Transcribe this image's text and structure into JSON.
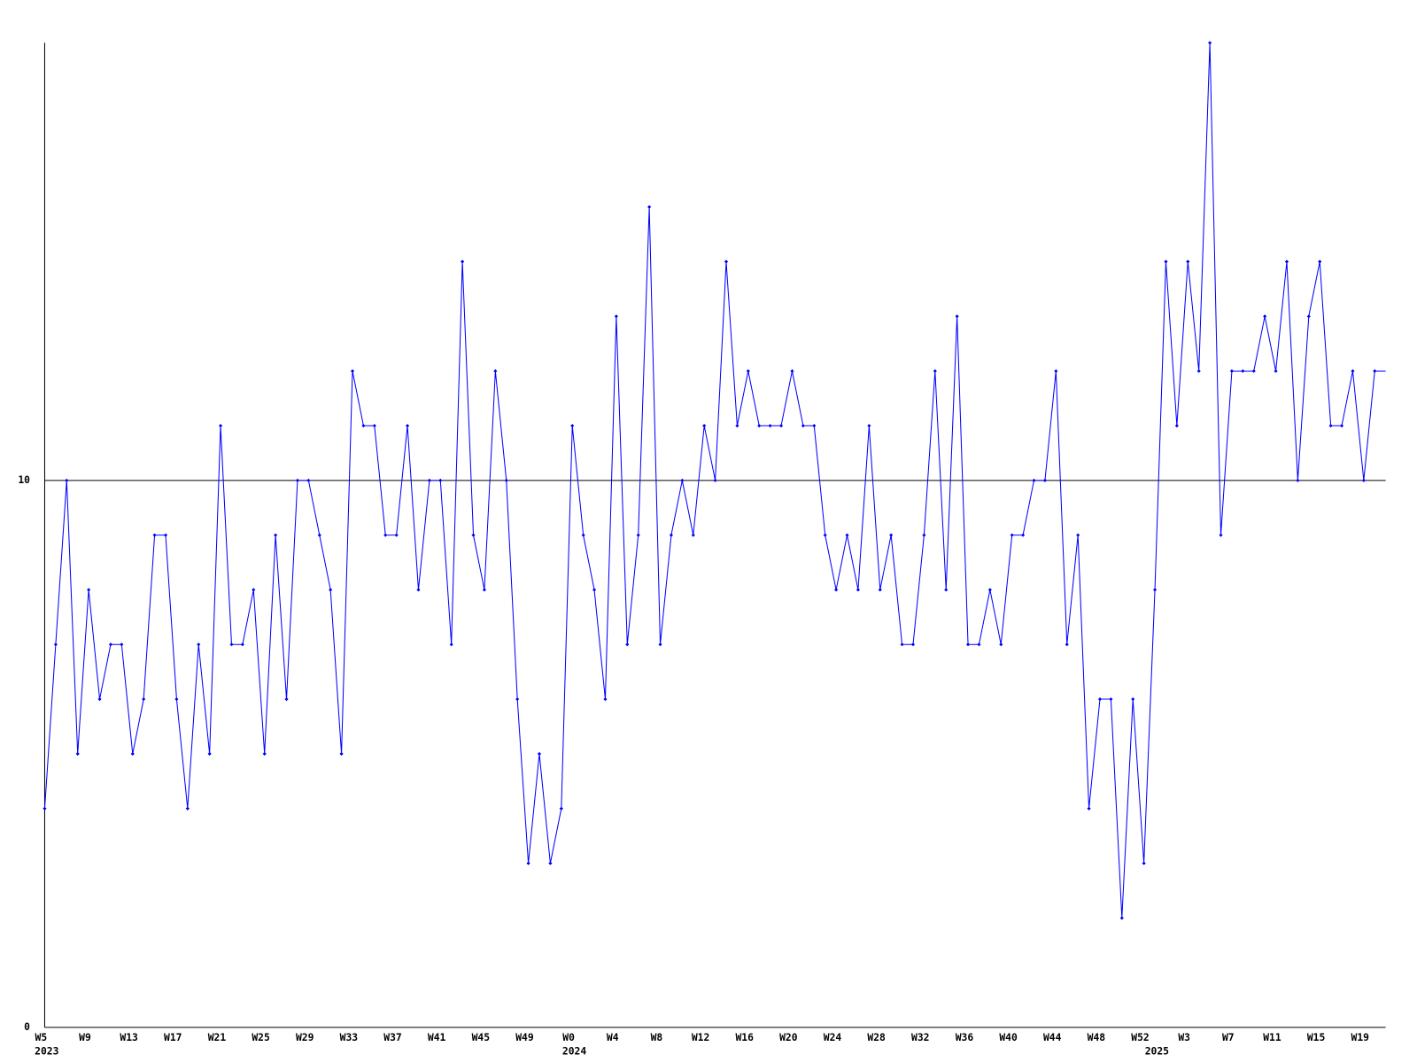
{
  "chart_data": {
    "type": "line",
    "categories": [
      "W5",
      null,
      null,
      null,
      "W9",
      null,
      null,
      null,
      "W13",
      null,
      null,
      null,
      "W17",
      null,
      null,
      null,
      "W21",
      null,
      null,
      null,
      "W25",
      null,
      null,
      null,
      "W29",
      null,
      null,
      null,
      "W33",
      null,
      null,
      null,
      "W37",
      null,
      null,
      null,
      "W41",
      null,
      null,
      null,
      "W45",
      null,
      null,
      null,
      "W49",
      null,
      null,
      null,
      "W0",
      null,
      null,
      null,
      "W4",
      null,
      null,
      null,
      "W8",
      null,
      null,
      null,
      "W12",
      null,
      null,
      null,
      "W16",
      null,
      null,
      null,
      "W20",
      null,
      null,
      null,
      "W24",
      null,
      null,
      null,
      "W28",
      null,
      null,
      null,
      "W32",
      null,
      null,
      null,
      "W36",
      null,
      null,
      null,
      "W40",
      null,
      null,
      null,
      "W44",
      null,
      null,
      null,
      "W48",
      null,
      null,
      null,
      "W52",
      null,
      null,
      null,
      "W3",
      null,
      null,
      null,
      "W7",
      null,
      null,
      null,
      "W11",
      null,
      null,
      null,
      "W15",
      null,
      null,
      null,
      "W19",
      null
    ],
    "year_categories": [
      "2023",
      null,
      null,
      null,
      null,
      null,
      null,
      null,
      null,
      null,
      null,
      null,
      null,
      null,
      null,
      null,
      null,
      null,
      null,
      null,
      null,
      null,
      null,
      null,
      null,
      null,
      null,
      null,
      null,
      null,
      null,
      null,
      null,
      null,
      null,
      null,
      null,
      null,
      null,
      null,
      null,
      null,
      null,
      null,
      null,
      null,
      null,
      null,
      "2024",
      null,
      null,
      null,
      null,
      null,
      null,
      null,
      null,
      null,
      null,
      null,
      null,
      null,
      null,
      null,
      null,
      null,
      null,
      null,
      null,
      null,
      null,
      null,
      null,
      null,
      null,
      null,
      null,
      null,
      null,
      null,
      null,
      null,
      null,
      null,
      null,
      null,
      null,
      null,
      null,
      null,
      null,
      null,
      null,
      null,
      null,
      null,
      null,
      null,
      null,
      null,
      null,
      "2025",
      null,
      null,
      null,
      null,
      null,
      null,
      null,
      null,
      null,
      null,
      null,
      null,
      null,
      null,
      null,
      null,
      null,
      null,
      null,
      null
    ],
    "series": [
      {
        "color": "#0000ff",
        "values": [
          4,
          7,
          10,
          5,
          8,
          6,
          7,
          7,
          5,
          6,
          9,
          9,
          6,
          4,
          7,
          5,
          11,
          7,
          7,
          8,
          5,
          9,
          6,
          10,
          10,
          9,
          8,
          5,
          12,
          11,
          11,
          9,
          9,
          11,
          8,
          10,
          10,
          7,
          14,
          9,
          8,
          12,
          10,
          6,
          3,
          5,
          3,
          4,
          11,
          9,
          8,
          6,
          13,
          7,
          9,
          15,
          7,
          9,
          10,
          9,
          11,
          10,
          14,
          11,
          12,
          11,
          11,
          11,
          12,
          11,
          11,
          9,
          8,
          9,
          8,
          11,
          8,
          9,
          7,
          7,
          9,
          12,
          8,
          13,
          7,
          7,
          8,
          7,
          9,
          9,
          10,
          10,
          12,
          7,
          9,
          4,
          6,
          6,
          2,
          6,
          3,
          8,
          14,
          11,
          14,
          12,
          18,
          9,
          12,
          12,
          12,
          13,
          12,
          14,
          10,
          13,
          14,
          11,
          11,
          12,
          10,
          12
        ]
      }
    ],
    "ylim": [
      0,
      18
    ],
    "yticks": [
      0,
      10
    ],
    "grid": true
  }
}
